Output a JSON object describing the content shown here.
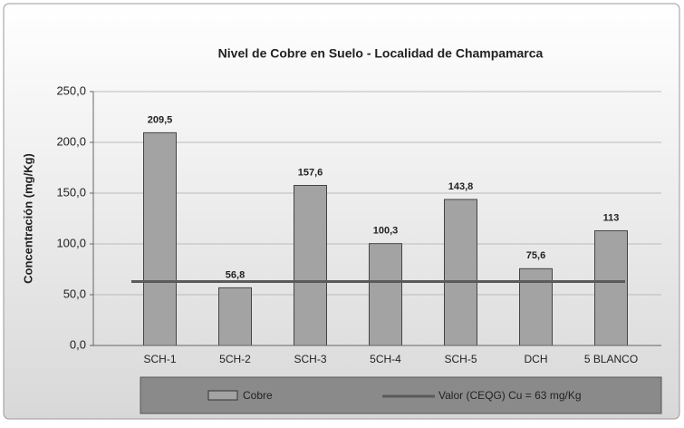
{
  "chart_data": {
    "type": "bar",
    "title": "Nivel de Cobre en Suelo  -  Localidad de Champamarca",
    "y_label": "Concentración (mg/Kg)",
    "categories": [
      "SCH-1",
      "5CH-2",
      "SCH-3",
      "5CH-4",
      "SCH-5",
      "DCH",
      "5 BLANCO"
    ],
    "series": [
      {
        "name": "Cobre",
        "color": "#a3a3a3",
        "values": [
          209.5,
          56.8,
          157.6,
          100.3,
          143.8,
          75.6,
          113
        ],
        "value_labels": [
          "209,5",
          "56,8",
          "157,6",
          "100,3",
          "143,8",
          "75,6",
          "113"
        ]
      }
    ],
    "reference_line": {
      "name": "Valor (CEQG) Cu = 63 mg/Kg",
      "value": 63,
      "color": "#5a5a5a"
    },
    "ylim": [
      0,
      250
    ],
    "yticks": [
      {
        "value": 0,
        "label": "0,0"
      },
      {
        "value": 50,
        "label": "50,0"
      },
      {
        "value": 100,
        "label": "100,0"
      },
      {
        "value": 150,
        "label": "150,0"
      },
      {
        "value": 200,
        "label": "200,0"
      },
      {
        "value": 250,
        "label": "250,0"
      }
    ],
    "grid": true
  }
}
